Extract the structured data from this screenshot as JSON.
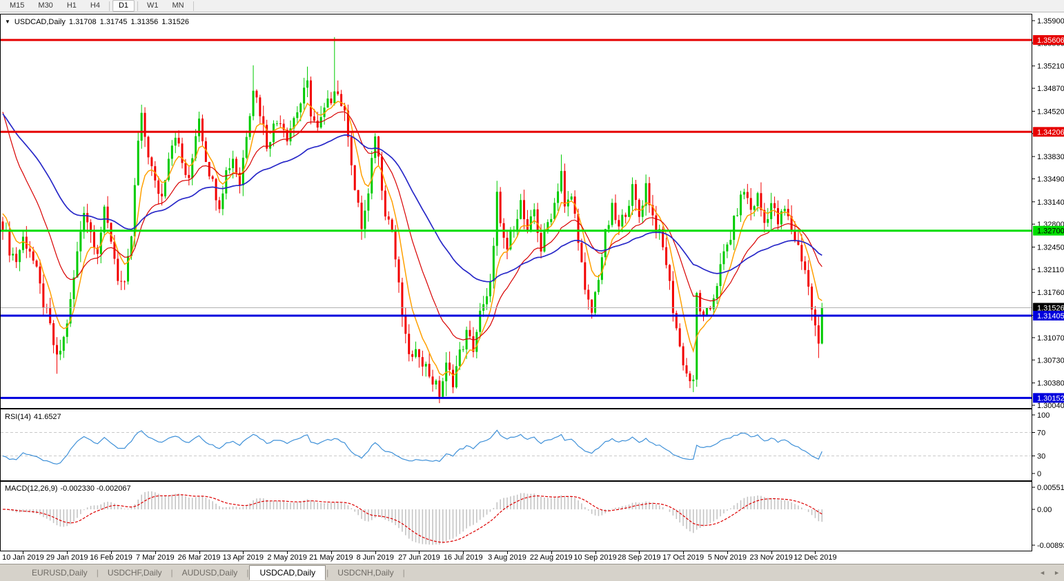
{
  "toolbar": {
    "timeframes": [
      {
        "label": "M15",
        "active": false
      },
      {
        "label": "M30",
        "active": false
      },
      {
        "label": "H1",
        "active": false
      },
      {
        "label": "H4",
        "active": false
      },
      {
        "label": "D1",
        "active": true
      },
      {
        "label": "W1",
        "active": false
      },
      {
        "label": "MN",
        "active": false
      }
    ]
  },
  "chart": {
    "dropdown_icon": "▼",
    "symbol_label": "USDCAD,Daily"
  },
  "chart_data": {
    "type": "candlestick",
    "symbol": "USDCAD",
    "period": "Daily",
    "ohlc_display": {
      "open": "1.31708",
      "high": "1.31745",
      "low": "1.31356",
      "close": "1.31526"
    },
    "y_axis": {
      "max": 1.359,
      "min": 1.3004,
      "ticks": [
        "1.35900",
        "1.35560",
        "1.35210",
        "1.34870",
        "1.34520",
        "1.34180",
        "1.33830",
        "1.33490",
        "1.33140",
        "1.32800",
        "1.32450",
        "1.32110",
        "1.31760",
        "1.31410",
        "1.31070",
        "1.30730",
        "1.30380",
        "1.30040"
      ]
    },
    "x_axis": {
      "labels": [
        "10 Jan 2019",
        "29 Jan 2019",
        "16 Feb 2019",
        "7 Mar 2019",
        "26 Mar 2019",
        "13 Apr 2019",
        "2 May 2019",
        "21 May 2019",
        "8 Jun 2019",
        "27 Jun 2019",
        "16 Jul 2019",
        "3 Aug 2019",
        "22 Aug 2019",
        "10 Sep 2019",
        "28 Sep 2019",
        "17 Oct 2019",
        "5 Nov 2019",
        "23 Nov 2019",
        "12 Dec 2019"
      ],
      "label_indices": [
        6,
        19,
        32,
        45,
        58,
        71,
        84,
        97,
        110,
        123,
        136,
        149,
        162,
        175,
        188,
        201,
        214,
        227,
        240
      ]
    },
    "candles": {
      "count": 243,
      "last_close": 1.31526,
      "up_color": "#00cb00",
      "down_color": "#f20000",
      "anchors": [
        [
          0,
          1.328
        ],
        [
          2,
          1.3242
        ],
        [
          4,
          1.3225
        ],
        [
          6,
          1.3258
        ],
        [
          8,
          1.3242
        ],
        [
          10,
          1.3205
        ],
        [
          12,
          1.316
        ],
        [
          14,
          1.3122
        ],
        [
          16,
          1.3072
        ],
        [
          18,
          1.3105
        ],
        [
          20,
          1.316
        ],
        [
          22,
          1.3235
        ],
        [
          24,
          1.3305
        ],
        [
          26,
          1.3268
        ],
        [
          28,
          1.3242
        ],
        [
          30,
          1.3296
        ],
        [
          32,
          1.3258
        ],
        [
          34,
          1.32
        ],
        [
          36,
          1.3182
        ],
        [
          38,
          1.3262
        ],
        [
          40,
          1.3405
        ],
        [
          41,
          1.344
        ],
        [
          43,
          1.3388
        ],
        [
          45,
          1.334
        ],
        [
          47,
          1.3322
        ],
        [
          49,
          1.3388
        ],
        [
          51,
          1.342
        ],
        [
          53,
          1.3372
        ],
        [
          55,
          1.3342
        ],
        [
          57,
          1.342
        ],
        [
          58,
          1.3445
        ],
        [
          60,
          1.3382
        ],
        [
          62,
          1.3342
        ],
        [
          64,
          1.3312
        ],
        [
          66,
          1.336
        ],
        [
          68,
          1.3382
        ],
        [
          70,
          1.3342
        ],
        [
          72,
          1.342
        ],
        [
          74,
          1.349
        ],
        [
          76,
          1.3452
        ],
        [
          78,
          1.3402
        ],
        [
          80,
          1.3428
        ],
        [
          82,
          1.3442
        ],
        [
          84,
          1.3415
        ],
        [
          86,
          1.3442
        ],
        [
          88,
          1.3465
        ],
        [
          90,
          1.3492
        ],
        [
          91,
          1.3452
        ],
        [
          93,
          1.3422
        ],
        [
          95,
          1.3452
        ],
        [
          97,
          1.3472
        ],
        [
          98,
          1.3492
        ],
        [
          100,
          1.3465
        ],
        [
          102,
          1.3422
        ],
        [
          104,
          1.3332
        ],
        [
          106,
          1.3276
        ],
        [
          108,
          1.3322
        ],
        [
          110,
          1.342
        ],
        [
          111,
          1.338
        ],
        [
          113,
          1.3302
        ],
        [
          115,
          1.3272
        ],
        [
          117,
          1.3182
        ],
        [
          119,
          1.3102
        ],
        [
          121,
          1.3072
        ],
        [
          123,
          1.3086
        ],
        [
          125,
          1.3062
        ],
        [
          127,
          1.3042
        ],
        [
          129,
          1.3022
        ],
        [
          131,
          1.3062
        ],
        [
          133,
          1.3042
        ],
        [
          135,
          1.3082
        ],
        [
          137,
          1.3112
        ],
        [
          139,
          1.3092
        ],
        [
          141,
          1.3142
        ],
        [
          143,
          1.3162
        ],
        [
          145,
          1.3242
        ],
        [
          146,
          1.3322
        ],
        [
          147,
          1.3272
        ],
        [
          149,
          1.3242
        ],
        [
          151,
          1.3282
        ],
        [
          153,
          1.3312
        ],
        [
          155,
          1.3262
        ],
        [
          157,
          1.3302
        ],
        [
          159,
          1.3242
        ],
        [
          161,
          1.3282
        ],
        [
          163,
          1.3312
        ],
        [
          165,
          1.3362
        ],
        [
          166,
          1.3302
        ],
        [
          168,
          1.3322
        ],
        [
          170,
          1.3262
        ],
        [
          172,
          1.3172
        ],
        [
          174,
          1.3145
        ],
        [
          176,
          1.3202
        ],
        [
          178,
          1.3262
        ],
        [
          180,
          1.3302
        ],
        [
          182,
          1.3272
        ],
        [
          184,
          1.3302
        ],
        [
          186,
          1.3332
        ],
        [
          188,
          1.3292
        ],
        [
          190,
          1.334
        ],
        [
          192,
          1.3292
        ],
        [
          194,
          1.3262
        ],
        [
          196,
          1.3222
        ],
        [
          198,
          1.3152
        ],
        [
          200,
          1.3092
        ],
        [
          202,
          1.3052
        ],
        [
          204,
          1.3035
        ],
        [
          205,
          1.3172
        ],
        [
          207,
          1.3132
        ],
        [
          209,
          1.3152
        ],
        [
          211,
          1.3192
        ],
        [
          213,
          1.3232
        ],
        [
          215,
          1.3262
        ],
        [
          217,
          1.3302
        ],
        [
          219,
          1.3332
        ],
        [
          221,
          1.3302
        ],
        [
          223,
          1.3322
        ],
        [
          225,
          1.3282
        ],
        [
          227,
          1.3312
        ],
        [
          229,
          1.3282
        ],
        [
          231,
          1.3302
        ],
        [
          233,
          1.3272
        ],
        [
          235,
          1.3246
        ],
        [
          237,
          1.3212
        ],
        [
          239,
          1.3152
        ],
        [
          240,
          1.3122
        ],
        [
          241,
          1.3098
        ],
        [
          242,
          1.31526
        ]
      ],
      "spikes": [
        {
          "i": 16,
          "l": 1.3052
        },
        {
          "i": 41,
          "h": 1.3462
        },
        {
          "i": 74,
          "h": 1.3522
        },
        {
          "i": 90,
          "h": 1.352
        },
        {
          "i": 98,
          "h": 1.3565
        },
        {
          "i": 129,
          "l": 1.3016
        },
        {
          "i": 131,
          "l": 1.3018
        },
        {
          "i": 146,
          "h": 1.3346
        },
        {
          "i": 165,
          "h": 1.3386
        },
        {
          "i": 204,
          "l": 1.3024
        },
        {
          "i": 219,
          "h": 1.3332
        },
        {
          "i": 241,
          "l": 1.3076
        }
      ]
    },
    "levels": [
      {
        "price": 1.35606,
        "label": "1.35606",
        "color": "#e60000",
        "thickness": 3,
        "badge_bg": "#e60000",
        "badge_fg": "#ffffff",
        "role": "resistance"
      },
      {
        "price": 1.34206,
        "label": "1.34206",
        "color": "#e60000",
        "thickness": 3,
        "badge_bg": "#e60000",
        "badge_fg": "#ffffff",
        "role": "resistance"
      },
      {
        "price": 1.327,
        "label": "1.32700",
        "color": "#00dd00",
        "thickness": 3,
        "badge_bg": "#00dd00",
        "badge_fg": "#000000",
        "role": "pivot"
      },
      {
        "price": 1.31526,
        "label": "1.31526",
        "color": "#b0b0b0",
        "thickness": 1,
        "badge_bg": "#000000",
        "badge_fg": "#ffffff",
        "role": "current-price"
      },
      {
        "price": 1.31405,
        "label": "1.31405",
        "color": "#0000dd",
        "thickness": 3,
        "badge_bg": "#0000dd",
        "badge_fg": "#ffffff",
        "role": "support"
      },
      {
        "price": 1.30152,
        "label": "1.30152",
        "color": "#0000dd",
        "thickness": 3,
        "badge_bg": "#0000dd",
        "badge_fg": "#ffffff",
        "role": "support"
      }
    ],
    "moving_averages": [
      {
        "name": "fast-ma",
        "period": 7,
        "seed": 1.3305,
        "color": "#ffa000",
        "width": 1.5
      },
      {
        "name": "medium-ma",
        "period": 20,
        "seed": 1.347,
        "color": "#d80000",
        "width": 1.2
      },
      {
        "name": "slow-ma",
        "period": 52,
        "seed": 1.3455,
        "color": "#2828c8",
        "width": 1.7
      }
    ],
    "rsi": {
      "name": "RSI(14)",
      "value_display": "41.6527",
      "period": 14,
      "guide_levels": [
        70,
        30
      ],
      "ticks": [
        100,
        70,
        30,
        0
      ],
      "line_color": "#3e90d8",
      "scale": {
        "max": 100,
        "min": 0
      }
    },
    "macd": {
      "name": "MACD(12,26,9)",
      "values_display": "-0.002330 -0.002067",
      "fast": 12,
      "slow": 26,
      "signal": 9,
      "ticks": [
        {
          "label": "0.005512",
          "value": 0.005512
        },
        {
          "label": "0.00",
          "value": 0
        },
        {
          "label": "-0.008937",
          "value": -0.008937
        }
      ],
      "scale": {
        "max": 0.005512,
        "min": -0.008937
      },
      "histogram_color": "#c4c4c4",
      "signal_color": "#dd0000"
    }
  },
  "tabs": [
    {
      "label": "EURUSD,Daily",
      "active": false
    },
    {
      "label": "USDCHF,Daily",
      "active": false
    },
    {
      "label": "AUDUSD,Daily",
      "active": false
    },
    {
      "label": "USDCAD,Daily",
      "active": true
    },
    {
      "label": "USDCNH,Daily",
      "active": false
    }
  ],
  "tab_scroll": {
    "left_arrow": "◄",
    "right_arrow": "►"
  }
}
